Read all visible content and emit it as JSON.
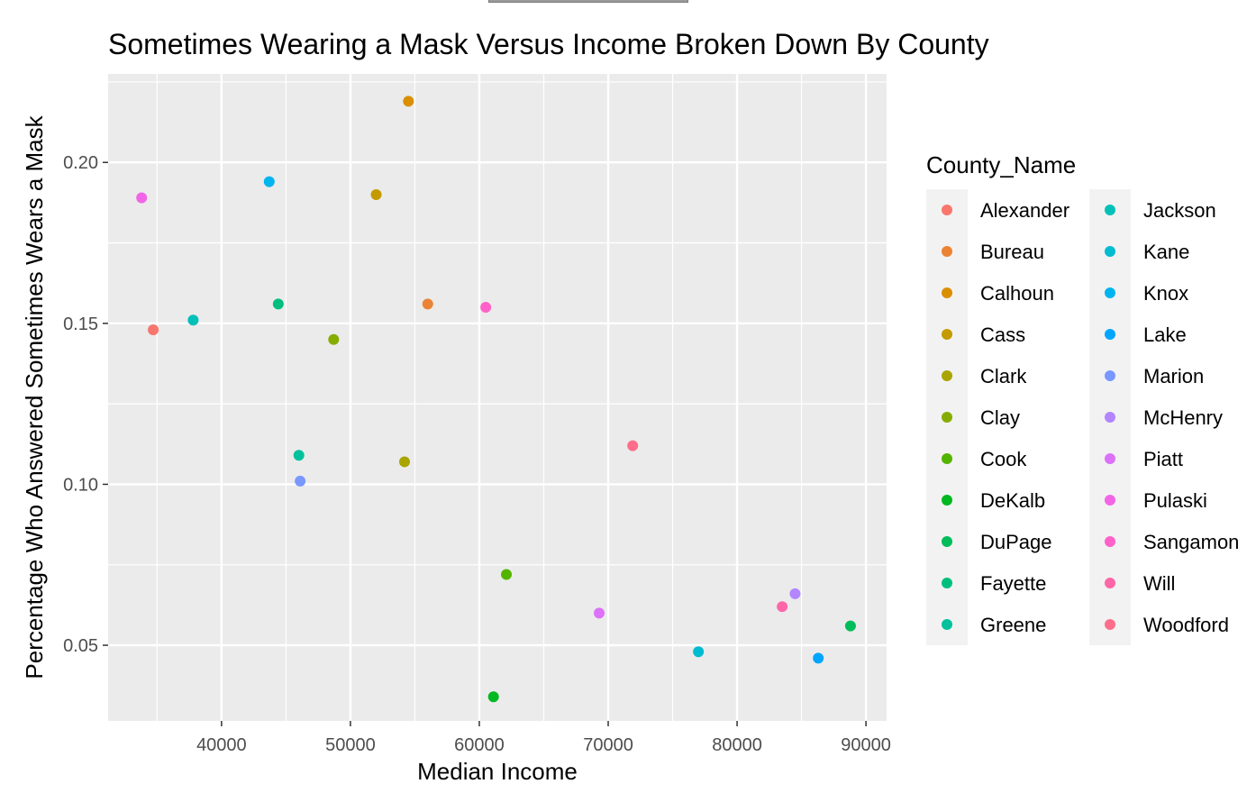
{
  "chart_data": {
    "type": "scatter",
    "title": "Sometimes Wearing a Mask Versus Income Broken Down By County",
    "xlabel": "Median Income",
    "ylabel": "Percentage Who Answered Sometimes Wears a Mask",
    "xlim": [
      31200,
      91600
    ],
    "ylim": [
      0.0265,
      0.2275
    ],
    "xticks": [
      40000,
      50000,
      60000,
      70000,
      80000,
      90000
    ],
    "yticks": [
      0.05,
      0.1,
      0.15,
      0.2
    ],
    "xtick_labels": [
      "40000",
      "50000",
      "60000",
      "70000",
      "80000",
      "90000"
    ],
    "ytick_labels": [
      "0.05",
      "0.10",
      "0.15",
      "0.20"
    ],
    "grid": true,
    "legend": {
      "title": "County_Name",
      "placement": "right"
    },
    "series": [
      {
        "name": "Alexander",
        "color": "#F8766D",
        "x": 34700,
        "y": 0.148
      },
      {
        "name": "Bureau",
        "color": "#EB8335",
        "x": 56000,
        "y": 0.156
      },
      {
        "name": "Calhoun",
        "color": "#DA8F00",
        "x": 54500,
        "y": 0.219
      },
      {
        "name": "Cass",
        "color": "#C49A00",
        "x": 52000,
        "y": 0.19
      },
      {
        "name": "Clark",
        "color": "#A9A400",
        "x": 54200,
        "y": 0.107
      },
      {
        "name": "Clay",
        "color": "#86AC00",
        "x": 48700,
        "y": 0.145
      },
      {
        "name": "Cook",
        "color": "#53B400",
        "x": 62100,
        "y": 0.072
      },
      {
        "name": "DeKalb",
        "color": "#00B81F",
        "x": 61100,
        "y": 0.034
      },
      {
        "name": "DuPage",
        "color": "#00BC59",
        "x": 88800,
        "y": 0.056
      },
      {
        "name": "Fayette",
        "color": "#00BF7D",
        "x": 44400,
        "y": 0.156
      },
      {
        "name": "Greene",
        "color": "#00C19C",
        "x": 46000,
        "y": 0.109
      },
      {
        "name": "Jackson",
        "color": "#00C0B8",
        "x": 37800,
        "y": 0.151
      },
      {
        "name": "Kane",
        "color": "#00BCD1",
        "x": 77000,
        "y": 0.048
      },
      {
        "name": "Knox",
        "color": "#00B4EF",
        "x": 43700,
        "y": 0.194
      },
      {
        "name": "Lake",
        "color": "#00A5FF",
        "x": 86300,
        "y": 0.046
      },
      {
        "name": "Marion",
        "color": "#7997FF",
        "x": 46100,
        "y": 0.101
      },
      {
        "name": "McHenry",
        "color": "#B385FF",
        "x": 84500,
        "y": 0.066
      },
      {
        "name": "Piatt",
        "color": "#DC71FA",
        "x": 69300,
        "y": 0.06
      },
      {
        "name": "Pulaski",
        "color": "#F265E7",
        "x": 33800,
        "y": 0.189
      },
      {
        "name": "Sangamon",
        "color": "#FF61C9",
        "x": 60500,
        "y": 0.155
      },
      {
        "name": "Will",
        "color": "#FF66A8",
        "x": 83500,
        "y": 0.062
      },
      {
        "name": "Woodford",
        "color": "#FE6E8A",
        "x": 71900,
        "y": 0.112
      }
    ]
  }
}
